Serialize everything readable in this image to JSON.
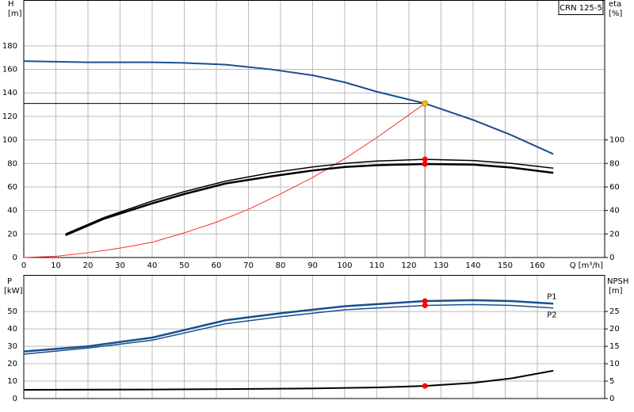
{
  "chart_data": [
    {
      "type": "line",
      "ylabel": "H",
      "yunit": "[m]",
      "y2label": "eta",
      "y2unit": "[%]",
      "xlabel": "Q [m³/h]",
      "legend_box": "CRN 125-5",
      "grid": true,
      "xtick_labels": true,
      "xlim": [
        0,
        181
      ],
      "xticks": [
        0,
        10,
        20,
        30,
        40,
        50,
        60,
        70,
        80,
        90,
        100,
        110,
        120,
        130,
        140,
        150,
        160
      ],
      "ylim": [
        0,
        219
      ],
      "yticks": [
        0,
        20,
        40,
        60,
        80,
        100,
        120,
        140,
        160,
        180
      ],
      "y2lim": [
        0,
        219
      ],
      "y2ticks": [
        0,
        20,
        40,
        60,
        80,
        100
      ],
      "series": [
        {
          "color": "#1a4f8f",
          "width": 2,
          "x": [
            0,
            20,
            40,
            50,
            63,
            77,
            90,
            100,
            110,
            125,
            140,
            152,
            165
          ],
          "values": [
            167,
            166,
            166,
            165.5,
            164,
            160,
            155,
            149,
            141,
            131,
            117,
            104,
            88
          ]
        },
        {
          "color": "#ff2a2a",
          "width": 1,
          "x": [
            0,
            10,
            20,
            30,
            40,
            50,
            60,
            70,
            80,
            90,
            100,
            110,
            125
          ],
          "values": [
            0,
            1,
            4,
            8,
            13,
            21,
            30,
            41,
            54,
            68,
            84,
            102,
            131
          ]
        },
        {
          "color": "#000000",
          "width": 1.5,
          "axis": "y2",
          "x": [
            13,
            25,
            40,
            50,
            63,
            77,
            90,
            100,
            110,
            125,
            140,
            152,
            165
          ],
          "values": [
            20,
            34,
            48,
            56,
            65,
            72,
            77,
            80,
            82,
            83.5,
            82.5,
            80,
            76
          ]
        },
        {
          "color": "#000000",
          "width": 2.5,
          "axis": "y2",
          "x": [
            13,
            25,
            40,
            50,
            63,
            77,
            90,
            100,
            110,
            125,
            140,
            152,
            165
          ],
          "values": [
            19,
            33,
            46,
            54,
            63,
            69,
            74,
            77,
            78.5,
            79.5,
            79,
            76.5,
            72
          ]
        }
      ],
      "markers": [
        {
          "x": 125,
          "y": 131,
          "color": "#f5c400",
          "duty": true
        },
        {
          "x": 125,
          "y": 83.5,
          "color": "#ff0000",
          "axis": "y2"
        },
        {
          "x": 125,
          "y": 79.5,
          "color": "#ff0000",
          "axis": "y2"
        }
      ]
    },
    {
      "type": "line",
      "ylabel": "P",
      "yunit": "[kW]",
      "y2label": "NPSH",
      "y2unit": "[m]",
      "grid": true,
      "xtick_labels": false,
      "xlim": [
        0,
        181
      ],
      "xticks": [
        0,
        10,
        20,
        30,
        40,
        50,
        60,
        70,
        80,
        90,
        100,
        110,
        120,
        130,
        140,
        150,
        160
      ],
      "ylim": [
        0,
        71
      ],
      "yticks": [
        0,
        10,
        20,
        30,
        40,
        50
      ],
      "y2lim": [
        0,
        35.5
      ],
      "y2ticks": [
        0,
        5,
        10,
        15,
        20,
        25
      ],
      "series": [
        {
          "name": "P1",
          "color": "#1a4f8f",
          "width": 2.5,
          "x": [
            0,
            20,
            40,
            63,
            80,
            100,
            125,
            140,
            152,
            165
          ],
          "values": [
            27,
            30,
            35,
            45,
            49,
            53,
            56,
            56.5,
            56,
            54.5
          ]
        },
        {
          "name": "P2",
          "color": "#1a4f8f",
          "width": 1.5,
          "x": [
            0,
            20,
            40,
            63,
            80,
            100,
            125,
            140,
            152,
            165
          ],
          "values": [
            25.5,
            29,
            33.5,
            43,
            47,
            51,
            53.5,
            54,
            53.5,
            52
          ]
        },
        {
          "color": "#000000",
          "width": 2,
          "axis": "y2",
          "x": [
            0,
            40,
            63,
            90,
            110,
            125,
            140,
            152,
            165
          ],
          "values": [
            2.5,
            2.6,
            2.7,
            2.9,
            3.2,
            3.6,
            4.5,
            5.8,
            8
          ]
        }
      ],
      "markers": [
        {
          "x": 125,
          "y": 56,
          "color": "#ff0000"
        },
        {
          "x": 125,
          "y": 53.5,
          "color": "#ff0000"
        },
        {
          "x": 125,
          "y": 3.6,
          "color": "#ff0000",
          "axis": "y2"
        }
      ]
    }
  ]
}
